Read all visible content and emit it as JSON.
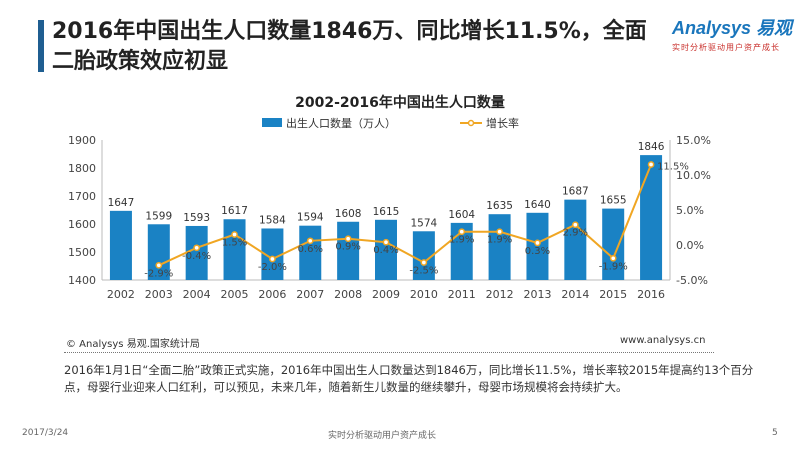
{
  "page": {
    "title": "2016年中国出生人口数量1846万、同比增长11.5%，全面二胎政策效应初显",
    "logo_text": "Analysys 易观",
    "logo_tagline": "实时分析驱动用户资产成长"
  },
  "chart_data": {
    "type": "bar",
    "title": "2002-2016年中国出生人口数量",
    "categories": [
      "2002",
      "2003",
      "2004",
      "2005",
      "2006",
      "2007",
      "2008",
      "2009",
      "2010",
      "2011",
      "2012",
      "2013",
      "2014",
      "2015",
      "2016"
    ],
    "series": [
      {
        "name": "出生人口数量（万人）",
        "type": "bar",
        "axis": "left",
        "color": "#1a82c4",
        "values": [
          1647,
          1599,
          1593,
          1617,
          1584,
          1594,
          1608,
          1615,
          1574,
          1604,
          1635,
          1640,
          1687,
          1655,
          1846
        ],
        "labels": [
          "1647",
          "1599",
          "1593",
          "1617",
          "1584",
          "1594",
          "1608",
          "1615",
          "1574",
          "1604",
          "1635",
          "1640",
          "1687",
          "1655",
          "1846"
        ]
      },
      {
        "name": "增长率",
        "type": "line",
        "axis": "right",
        "color": "#f0a623",
        "values": [
          null,
          -2.9,
          -0.4,
          1.5,
          -2.0,
          0.6,
          0.9,
          0.4,
          -2.5,
          1.9,
          1.9,
          0.3,
          2.9,
          -1.9,
          11.5
        ],
        "labels": [
          "",
          "-2.9%",
          "-0.4%",
          "1.5%",
          "-2.0%",
          "0.6%",
          "0.9%",
          "0.4%",
          "-2.5%",
          "1.9%",
          "1.9%",
          "0.3%",
          "2.9%",
          "-1.9%",
          "11.5%"
        ]
      }
    ],
    "y_left": {
      "min": 1400,
      "max": 1900,
      "ticks": [
        1400,
        1500,
        1600,
        1700,
        1800,
        1900
      ],
      "tick_labels": [
        "1400",
        "1500",
        "1600",
        "1700",
        "1800",
        "1900"
      ]
    },
    "y_right": {
      "min": -5,
      "max": 15,
      "ticks": [
        -5,
        0,
        5,
        10,
        15
      ],
      "tick_labels": [
        "-5.0%",
        "0.0%",
        "5.0%",
        "10.0%",
        "15.0%"
      ]
    },
    "legend_position": "top-center",
    "grid": false
  },
  "source": {
    "left": "© Analysys 易观.国家统计局",
    "right": "www.analysys.cn"
  },
  "description": "2016年1月1日“全面二胎”政策正式实施，2016年中国出生人口数量达到1846万，同比增长11.5%，增长率较2015年提高约13个百分点，母婴行业迎来人口红利，可以预见，未来几年，随着新生儿数量的继续攀升，母婴市场规模将会持续扩大。",
  "footer": {
    "date": "2017/3/24",
    "center": "实时分析驱动用户资产成长",
    "page_number": "5"
  }
}
